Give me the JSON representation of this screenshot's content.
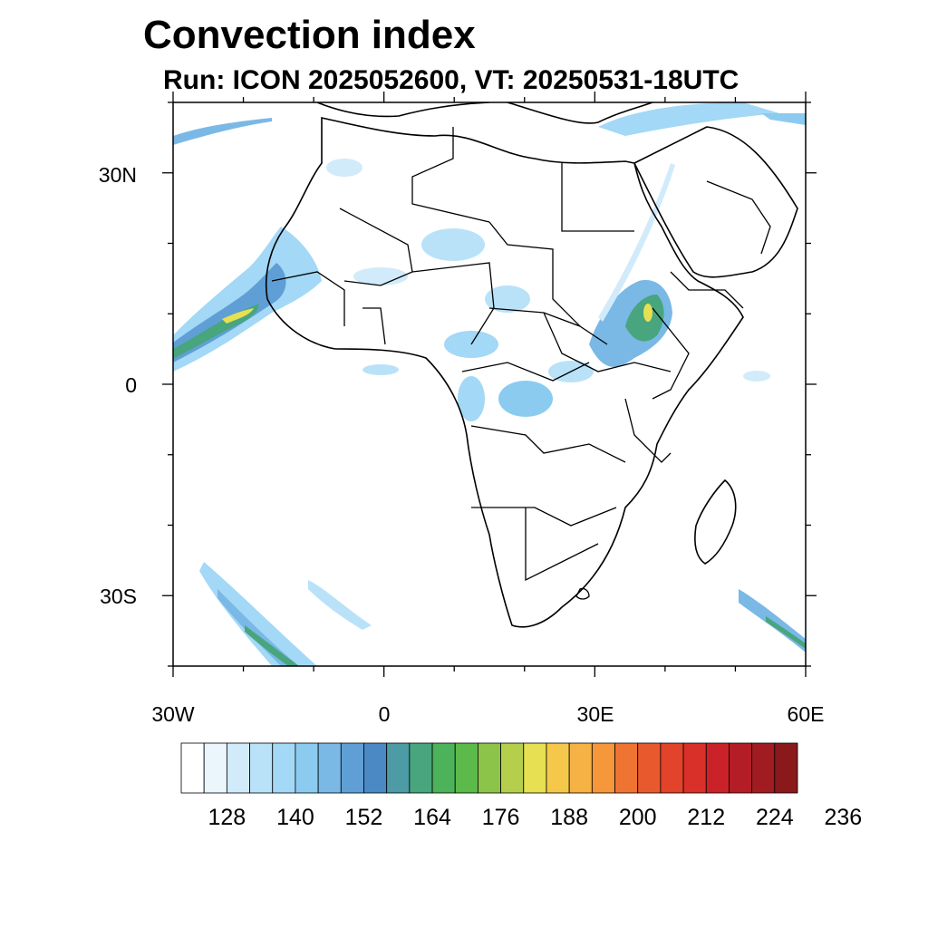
{
  "title": "Convection index",
  "subtitle": "Run: ICON 2025052600,  VT: 20250531-18UTC",
  "map": {
    "projection": "lat-lon",
    "lon_range": [
      -30,
      60
    ],
    "lat_range": [
      -40,
      40
    ],
    "lat_labels": [
      "30N",
      "0",
      "30S"
    ],
    "lat_values": [
      30,
      0,
      -30
    ],
    "lon_labels": [
      "30W",
      "0",
      "30E",
      "60E"
    ],
    "lon_values": [
      -30,
      0,
      30,
      60
    ],
    "regions_of_convection": [
      "West African coast / eastern Atlantic",
      "Ethiopian highlands",
      "Southwest Atlantic",
      "Southwest Indian Ocean",
      "Central Africa"
    ]
  },
  "colorbar": {
    "labels": [
      "128",
      "140",
      "152",
      "164",
      "176",
      "188",
      "200",
      "212",
      "224",
      "236"
    ],
    "colors": [
      "#ffffff",
      "#eaf5fc",
      "#d1ebfa",
      "#b9e2f8",
      "#a3d8f6",
      "#8ccbf0",
      "#7ab8e6",
      "#5f9fd6",
      "#4a89c4",
      "#4c9ba5",
      "#48a57d",
      "#4cb35a",
      "#5bba4a",
      "#8cc44a",
      "#b5cf4d",
      "#e6e052",
      "#f5c84b",
      "#f6b244",
      "#f5973a",
      "#ef7432",
      "#e85a2d",
      "#e1442a",
      "#d93129",
      "#cb2229",
      "#b51d26",
      "#a11c21",
      "#8a191c"
    ]
  }
}
